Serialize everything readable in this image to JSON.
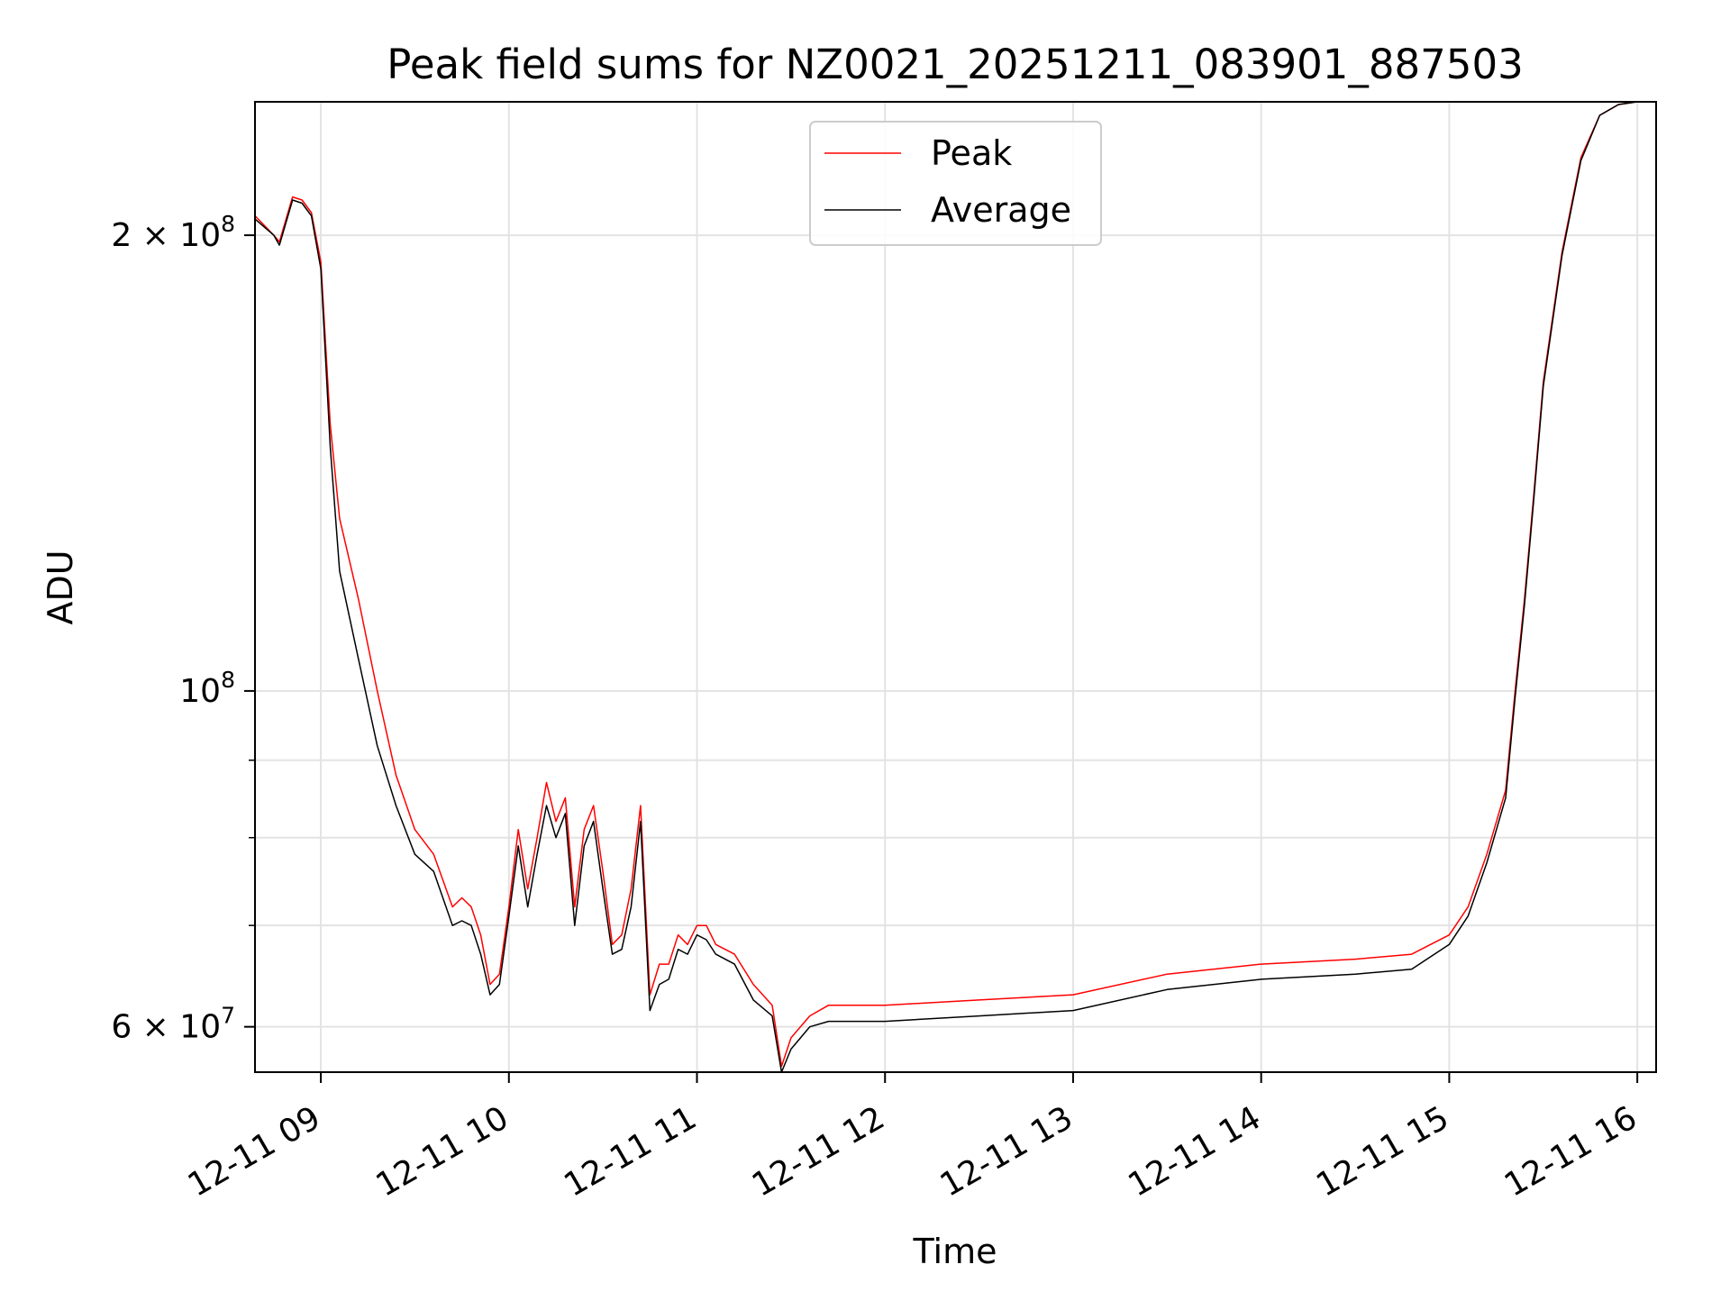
{
  "chart_data": {
    "type": "line",
    "title": "Peak field sums for NZ0021_20251211_083901_887503",
    "xlabel": "Time",
    "ylabel": "ADU",
    "yscale": "log",
    "xlim_hours": [
      8.65,
      16.1
    ],
    "ylim": [
      56000000,
      245000000
    ],
    "x_ticks": [
      {
        "value": 9,
        "label": "12-11 09"
      },
      {
        "value": 10,
        "label": "12-11 10"
      },
      {
        "value": 11,
        "label": "12-11 11"
      },
      {
        "value": 12,
        "label": "12-11 12"
      },
      {
        "value": 13,
        "label": "12-11 13"
      },
      {
        "value": 14,
        "label": "12-11 14"
      },
      {
        "value": 15,
        "label": "12-11 15"
      },
      {
        "value": 16,
        "label": "12-11 16"
      }
    ],
    "y_major_ticks": [
      {
        "value": 60000000,
        "label_base": "6 × 10",
        "label_exp": "7"
      },
      {
        "value": 100000000,
        "label_base": "10",
        "label_exp": "8"
      },
      {
        "value": 200000000,
        "label_base": "2 × 10",
        "label_exp": "8"
      }
    ],
    "y_minor_ticks": [
      70000000,
      80000000,
      90000000
    ],
    "grid": true,
    "legend": {
      "position": "top-center",
      "entries": [
        "Peak",
        "Average"
      ]
    },
    "series": [
      {
        "name": "Peak",
        "color": "#ff0000",
        "x": [
          8.65,
          8.75,
          8.78,
          8.85,
          8.9,
          8.95,
          9.0,
          9.05,
          9.1,
          9.2,
          9.3,
          9.4,
          9.5,
          9.6,
          9.7,
          9.75,
          9.8,
          9.85,
          9.9,
          9.95,
          10.0,
          10.05,
          10.1,
          10.15,
          10.2,
          10.25,
          10.3,
          10.35,
          10.4,
          10.45,
          10.5,
          10.55,
          10.6,
          10.65,
          10.7,
          10.75,
          10.8,
          10.85,
          10.9,
          10.95,
          11.0,
          11.05,
          11.1,
          11.2,
          11.3,
          11.4,
          11.45,
          11.5,
          11.6,
          11.7,
          11.8,
          12.0,
          12.5,
          13.0,
          13.5,
          14.0,
          14.5,
          14.8,
          15.0,
          15.1,
          15.2,
          15.3,
          15.35,
          15.4,
          15.45,
          15.5,
          15.6,
          15.7,
          15.8,
          15.9,
          16.0,
          16.1
        ],
        "y": [
          206000000,
          200000000,
          198000000,
          212000000,
          211000000,
          207000000,
          192000000,
          150000000,
          130000000,
          115000000,
          100000000,
          88000000,
          81000000,
          78000000,
          72000000,
          73000000,
          72000000,
          69000000,
          64000000,
          65000000,
          72000000,
          81000000,
          74000000,
          80000000,
          87000000,
          82000000,
          85000000,
          72000000,
          81000000,
          84000000,
          76000000,
          68000000,
          69000000,
          74000000,
          84000000,
          63000000,
          66000000,
          66000000,
          69000000,
          68000000,
          70000000,
          70000000,
          68000000,
          67000000,
          64000000,
          62000000,
          56500000,
          59000000,
          61000000,
          62000000,
          62000000,
          62000000,
          62500000,
          63000000,
          65000000,
          66000000,
          66500000,
          67000000,
          69000000,
          72000000,
          78000000,
          86000000,
          100000000,
          115000000,
          135000000,
          160000000,
          195000000,
          225000000,
          240000000,
          244000000,
          245000000,
          245000000
        ]
      },
      {
        "name": "Average",
        "color": "#000000",
        "x": [
          8.65,
          8.75,
          8.78,
          8.85,
          8.9,
          8.95,
          9.0,
          9.05,
          9.1,
          9.2,
          9.3,
          9.4,
          9.5,
          9.6,
          9.7,
          9.75,
          9.8,
          9.85,
          9.9,
          9.95,
          10.0,
          10.05,
          10.1,
          10.15,
          10.2,
          10.25,
          10.3,
          10.35,
          10.4,
          10.45,
          10.5,
          10.55,
          10.6,
          10.65,
          10.7,
          10.75,
          10.8,
          10.85,
          10.9,
          10.95,
          11.0,
          11.05,
          11.1,
          11.2,
          11.3,
          11.4,
          11.45,
          11.5,
          11.6,
          11.7,
          11.8,
          12.0,
          12.5,
          13.0,
          13.5,
          14.0,
          14.5,
          14.8,
          15.0,
          15.1,
          15.2,
          15.3,
          15.35,
          15.4,
          15.45,
          15.5,
          15.6,
          15.7,
          15.8,
          15.9,
          16.0,
          16.1
        ],
        "y": [
          205000000,
          200000000,
          197000000,
          211000000,
          210000000,
          206000000,
          190000000,
          145000000,
          120000000,
          105000000,
          92000000,
          84000000,
          78000000,
          76000000,
          70000000,
          70500000,
          70000000,
          67000000,
          63000000,
          64000000,
          71000000,
          79000000,
          72000000,
          78000000,
          84000000,
          80000000,
          83000000,
          70000000,
          79000000,
          82000000,
          74000000,
          67000000,
          67500000,
          72000000,
          82000000,
          61500000,
          64000000,
          64500000,
          67500000,
          67000000,
          69000000,
          68500000,
          67000000,
          66000000,
          62500000,
          61000000,
          56000000,
          58000000,
          60000000,
          60500000,
          60500000,
          60500000,
          61000000,
          61500000,
          63500000,
          64500000,
          65000000,
          65500000,
          68000000,
          71000000,
          77000000,
          85000000,
          99000000,
          114000000,
          134000000,
          159000000,
          194000000,
          224000000,
          240000000,
          244000000,
          245000000,
          245000000
        ]
      }
    ]
  }
}
